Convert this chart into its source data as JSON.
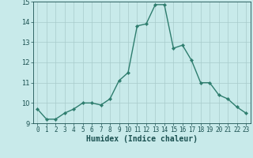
{
  "x": [
    0,
    1,
    2,
    3,
    4,
    5,
    6,
    7,
    8,
    9,
    10,
    11,
    12,
    13,
    14,
    15,
    16,
    17,
    18,
    19,
    20,
    21,
    22,
    23
  ],
  "y": [
    9.7,
    9.2,
    9.2,
    9.5,
    9.7,
    10.0,
    10.0,
    9.9,
    10.2,
    11.1,
    11.5,
    13.8,
    13.9,
    14.85,
    14.85,
    12.7,
    12.85,
    12.1,
    11.0,
    11.0,
    10.4,
    10.2,
    9.8,
    9.5
  ],
  "line_color": "#2e7d6e",
  "marker": "D",
  "marker_size": 2.2,
  "bg_color": "#c8eaea",
  "grid_color": "#a8cbcb",
  "tick_color": "#1a5050",
  "xlabel": "Humidex (Indice chaleur)",
  "ylim": [
    9,
    15
  ],
  "xlim": [
    -0.5,
    23.5
  ],
  "yticks": [
    9,
    10,
    11,
    12,
    13,
    14,
    15
  ],
  "xticks": [
    0,
    1,
    2,
    3,
    4,
    5,
    6,
    7,
    8,
    9,
    10,
    11,
    12,
    13,
    14,
    15,
    16,
    17,
    18,
    19,
    20,
    21,
    22,
    23
  ],
  "xlabel_fontsize": 7,
  "tick_fontsize": 5.5,
  "line_width": 1.0
}
